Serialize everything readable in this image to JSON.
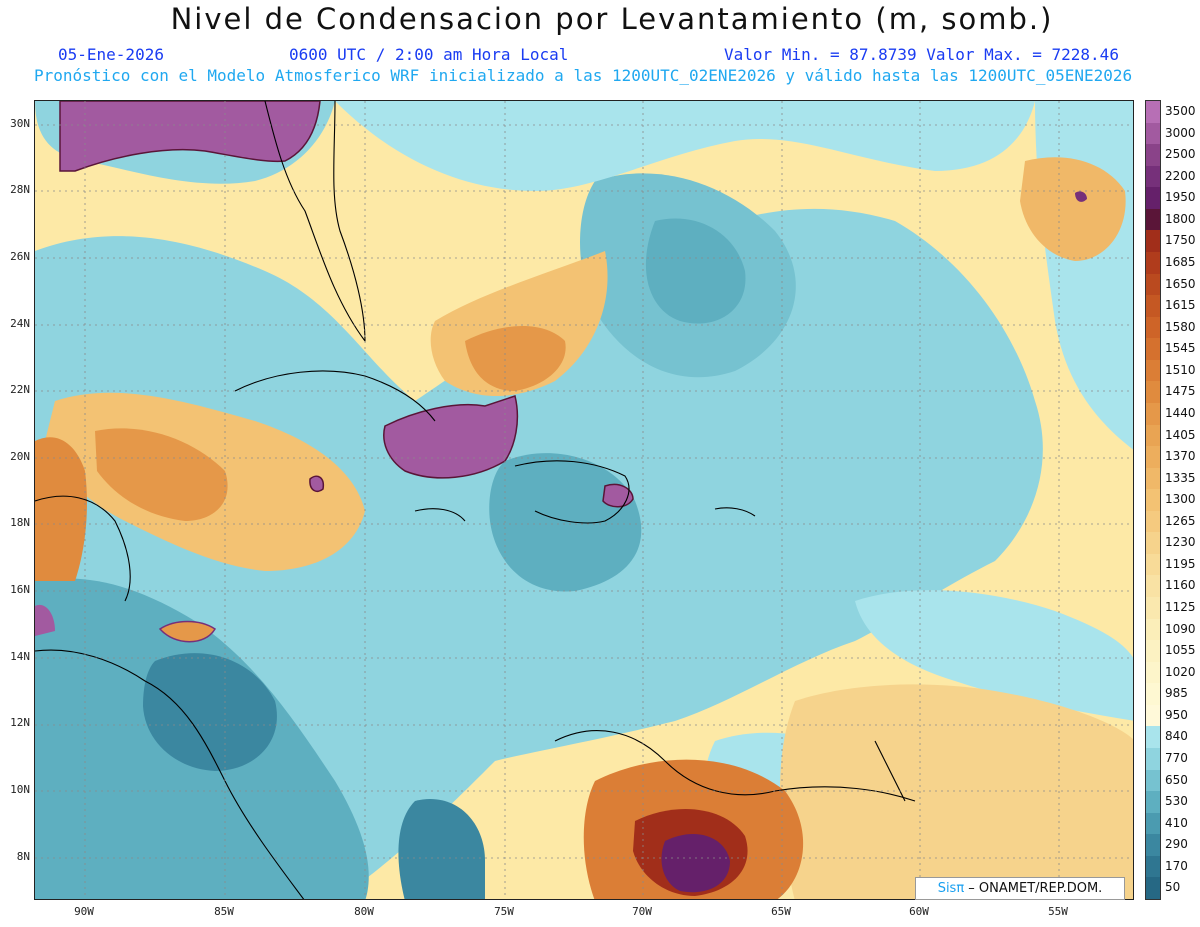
{
  "header": {
    "title": "Nivel de Condensacion por Levantamiento (m, somb.)",
    "date": "05-Ene-2026",
    "time": "0600 UTC / 2:00 am Hora Local",
    "minmax": "Valor Min. = 87.8739   Valor Max. = 7228.46",
    "model_note": "Pronóstico con el Modelo Atmosferico WRF inicializado a las 1200UTC_02ENE2026 y válido hasta las  1200UTC_05ENE2026"
  },
  "axes": {
    "lat_labels": [
      "30N",
      "28N",
      "26N",
      "24N",
      "22N",
      "20N",
      "18N",
      "16N",
      "14N",
      "12N",
      "10N",
      "8N"
    ],
    "lon_labels": [
      "90W",
      "85W",
      "80W",
      "75W",
      "70W",
      "65W",
      "60W",
      "55W"
    ]
  },
  "colorbar": {
    "labels": [
      "3500",
      "3000",
      "2500",
      "2200",
      "1950",
      "1800",
      "1750",
      "1685",
      "1650",
      "1615",
      "1580",
      "1545",
      "1510",
      "1475",
      "1440",
      "1405",
      "1370",
      "1335",
      "1300",
      "1265",
      "1230",
      "1195",
      "1160",
      "1125",
      "1090",
      "1055",
      "1020",
      "985",
      "950",
      "840",
      "770",
      "650",
      "530",
      "410",
      "290",
      "170",
      "50"
    ],
    "colors": [
      "#b76fb5",
      "#a25aa0",
      "#8a4389",
      "#76307a",
      "#65206a",
      "#5a1538",
      "#a12e1a",
      "#b03c1c",
      "#ba4a1f",
      "#c55823",
      "#ce6428",
      "#d5712e",
      "#db7e36",
      "#e08b3e",
      "#e59849",
      "#e9a453",
      "#edae5d",
      "#f0b868",
      "#f3c273",
      "#f5ca7f",
      "#f6d38c",
      "#f8db98",
      "#f9e2a4",
      "#fae8ae",
      "#fbeeb9",
      "#fcf2c2",
      "#fdf5ca",
      "#fef8d2",
      "#fff9d9",
      "#a9e4ec",
      "#8fd4df",
      "#76c2d0",
      "#5eafc0",
      "#4b9bb0",
      "#3b87a0",
      "#2f7691",
      "#266884"
    ]
  },
  "credit": {
    "brand": "Sisπ",
    "rest": " – ONAMET/REP.DOM."
  },
  "map_layers": {
    "background_color": "#fde9a6",
    "land_outline_color": "#000000",
    "grid_color": "#8a8a8a"
  }
}
